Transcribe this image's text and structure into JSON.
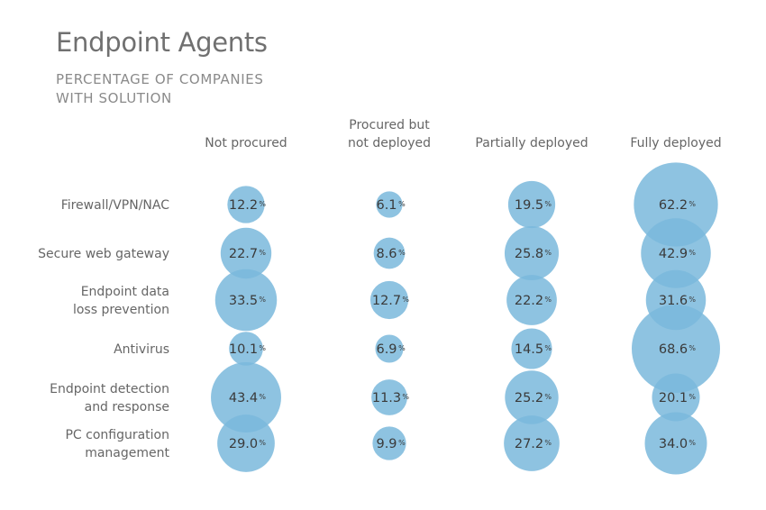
{
  "title": "Endpoint Agents",
  "subtitle_lines": [
    "PERCENTAGE OF COMPANIES",
    "WITH SOLUTION"
  ],
  "chart_data": {
    "type": "bubble-matrix",
    "unit": "%",
    "color": "#7ab8dc",
    "columns": [
      [
        "Not procured"
      ],
      [
        "Procured but",
        "not deployed"
      ],
      [
        "Partially deployed"
      ],
      [
        "Fully deployed"
      ]
    ],
    "rows": [
      {
        "label": [
          "Firewall/VPN/NAC"
        ],
        "values": [
          "12.2",
          "6.1",
          "19.5",
          "62.2"
        ]
      },
      {
        "label": [
          "Secure web gateway"
        ],
        "values": [
          "22.7",
          "8.6",
          "25.8",
          "42.9"
        ]
      },
      {
        "label": [
          "Endpoint data",
          "loss prevention"
        ],
        "values": [
          "33.5",
          "12.7",
          "22.2",
          "31.6"
        ]
      },
      {
        "label": [
          "Antivirus"
        ],
        "values": [
          "10.1",
          "6.9",
          "14.5",
          "68.6"
        ]
      },
      {
        "label": [
          "Endpoint detection",
          "and response"
        ],
        "values": [
          "43.4",
          "11.3",
          "25.2",
          "20.1"
        ]
      },
      {
        "label": [
          "PC configuration",
          "management"
        ],
        "values": [
          "29.0",
          "9.9",
          "27.2",
          "34.0"
        ]
      }
    ]
  }
}
